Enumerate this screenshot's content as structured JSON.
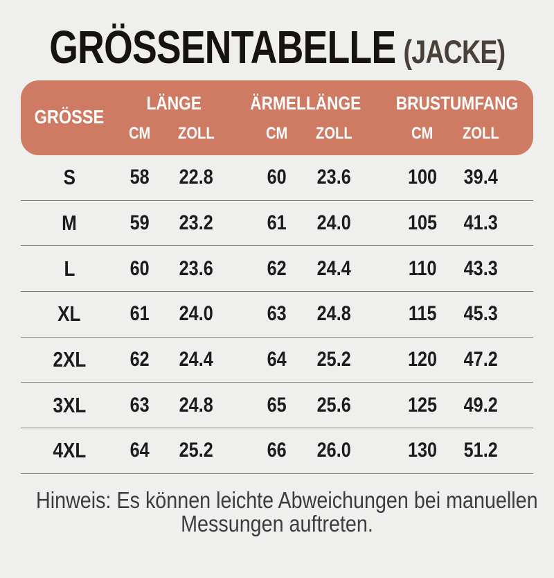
{
  "title": {
    "main": "GRÖSSENTABELLE",
    "suffix": "(JACKE)"
  },
  "table": {
    "size_col_header": "GRÖSSE",
    "groups": [
      {
        "label": "LÄNGE",
        "units": [
          "CM",
          "ZOLL"
        ]
      },
      {
        "label": "ÄRMELLÄNGE",
        "units": [
          "CM",
          "ZOLL"
        ]
      },
      {
        "label": "BRUSTUMFANG",
        "units": [
          "CM",
          "ZOLL"
        ]
      }
    ],
    "rows": [
      {
        "size": "S",
        "values": [
          "58",
          "22.8",
          "60",
          "23.6",
          "100",
          "39.4"
        ]
      },
      {
        "size": "M",
        "values": [
          "59",
          "23.2",
          "61",
          "24.0",
          "105",
          "41.3"
        ]
      },
      {
        "size": "L",
        "values": [
          "60",
          "23.6",
          "62",
          "24.4",
          "110",
          "43.3"
        ]
      },
      {
        "size": "XL",
        "values": [
          "61",
          "24.0",
          "63",
          "24.8",
          "115",
          "45.3"
        ]
      },
      {
        "size": "2XL",
        "values": [
          "62",
          "24.4",
          "64",
          "25.2",
          "120",
          "47.2"
        ]
      },
      {
        "size": "3XL",
        "values": [
          "63",
          "24.8",
          "65",
          "25.6",
          "125",
          "49.2"
        ]
      },
      {
        "size": "4XL",
        "values": [
          "64",
          "25.2",
          "66",
          "26.0",
          "130",
          "51.2"
        ]
      }
    ]
  },
  "footer": {
    "line1": "Hinweis: Es können leichte Abweichungen bei manuellen",
    "line2": "Messungen auftreten."
  },
  "colors": {
    "page_bg": "#efefee",
    "header_bg": "#cf7a62",
    "header_text": "#ffffff",
    "title_main": "#171310",
    "title_suffix": "#494139",
    "divider": "#757575",
    "body_text": "#1c1c1c",
    "footer_text": "#3c3c3c"
  },
  "chart_data": {
    "type": "table",
    "title": "GRÖSSENTABELLE (JACKE)",
    "columns": [
      "GRÖSSE",
      "LÄNGE CM",
      "LÄNGE ZOLL",
      "ÄRMELLÄNGE CM",
      "ÄRMELLÄNGE ZOLL",
      "BRUSTUMFANG CM",
      "BRUSTUMFANG ZOLL"
    ],
    "rows": [
      [
        "S",
        58,
        22.8,
        60,
        23.6,
        100,
        39.4
      ],
      [
        "M",
        59,
        23.2,
        61,
        24.0,
        105,
        41.3
      ],
      [
        "L",
        60,
        23.6,
        62,
        24.4,
        110,
        43.3
      ],
      [
        "XL",
        61,
        24.0,
        63,
        24.8,
        115,
        45.3
      ],
      [
        "2XL",
        62,
        24.4,
        64,
        25.2,
        120,
        47.2
      ],
      [
        "3XL",
        63,
        24.8,
        65,
        25.6,
        125,
        49.2
      ],
      [
        "4XL",
        64,
        25.2,
        66,
        26.0,
        130,
        51.2
      ]
    ]
  }
}
